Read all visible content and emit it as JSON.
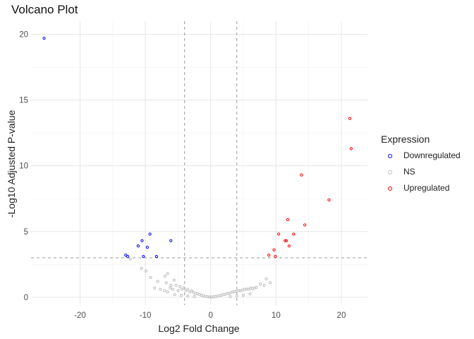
{
  "chart_data": {
    "type": "scatter",
    "title": "Volcano Plot",
    "xlabel": "Log2 Fold Change",
    "ylabel": "-Log10 Adjusted P-value",
    "xlim": [
      -27.5,
      24
    ],
    "ylim": [
      -0.6,
      21.0
    ],
    "x_ticks": [
      -20,
      -10,
      0,
      10,
      20
    ],
    "y_ticks": [
      0,
      5,
      10,
      15,
      20
    ],
    "grid": true,
    "legend_position": "right",
    "legend_title": "Expression",
    "thresholds": {
      "log2fc": [
        -4,
        4
      ],
      "neg_log10_padj": 3
    },
    "series": [
      {
        "name": "Downregulated",
        "color": "#0000ff",
        "points": [
          [
            -25.5,
            19.7
          ],
          [
            -13.0,
            3.2
          ],
          [
            -12.7,
            3.1
          ],
          [
            -11.1,
            3.9
          ],
          [
            -10.5,
            4.3
          ],
          [
            -10.3,
            3.1
          ],
          [
            -9.7,
            3.8
          ],
          [
            -9.3,
            4.8
          ],
          [
            -8.3,
            3.1
          ],
          [
            -6.1,
            4.3
          ]
        ]
      },
      {
        "name": "NS",
        "color": "#bebebe",
        "points": [
          [
            -12.3,
            2.9
          ],
          [
            -10.6,
            2.2
          ],
          [
            -9.9,
            2.0
          ],
          [
            -9.2,
            1.5
          ],
          [
            -8.1,
            1.2
          ],
          [
            -7.0,
            1.6
          ],
          [
            -6.8,
            1.1
          ],
          [
            -6.6,
            1.8
          ],
          [
            -6.1,
            0.9
          ],
          [
            -5.6,
            1.3
          ],
          [
            -8.6,
            0.7
          ],
          [
            -7.7,
            0.6
          ],
          [
            -7.1,
            0.5
          ],
          [
            -6.6,
            0.4
          ],
          [
            -6.2,
            0.7
          ],
          [
            -5.8,
            0.6
          ],
          [
            -5.3,
            0.9
          ],
          [
            -5.0,
            0.5
          ],
          [
            -4.7,
            0.8
          ],
          [
            -4.4,
            0.6
          ],
          [
            -4.1,
            0.7
          ],
          [
            -3.8,
            0.5
          ],
          [
            -3.5,
            0.6
          ],
          [
            -3.2,
            0.4
          ],
          [
            -2.9,
            0.5
          ],
          [
            -2.6,
            0.35
          ],
          [
            -2.3,
            0.3
          ],
          [
            -2.0,
            0.25
          ],
          [
            -1.7,
            0.2
          ],
          [
            -1.4,
            0.15
          ],
          [
            -1.1,
            0.1
          ],
          [
            -0.8,
            0.07
          ],
          [
            -0.5,
            0.04
          ],
          [
            -0.2,
            0.02
          ],
          [
            0.1,
            0.01
          ],
          [
            0.4,
            0.03
          ],
          [
            0.7,
            0.05
          ],
          [
            1.0,
            0.08
          ],
          [
            1.3,
            0.1
          ],
          [
            1.6,
            0.15
          ],
          [
            1.9,
            0.2
          ],
          [
            2.2,
            0.22
          ],
          [
            2.5,
            0.28
          ],
          [
            2.8,
            0.3
          ],
          [
            3.1,
            0.35
          ],
          [
            3.4,
            0.4
          ],
          [
            3.7,
            0.42
          ],
          [
            4.0,
            0.45
          ],
          [
            4.3,
            0.5
          ],
          [
            4.6,
            0.5
          ],
          [
            4.9,
            0.55
          ],
          [
            5.2,
            0.6
          ],
          [
            5.5,
            0.62
          ],
          [
            5.8,
            0.6
          ],
          [
            6.1,
            0.7
          ],
          [
            6.4,
            0.65
          ],
          [
            6.7,
            0.7
          ],
          [
            7.0,
            0.75
          ],
          [
            7.6,
            1.0
          ],
          [
            8.2,
            0.9
          ],
          [
            8.5,
            1.4
          ],
          [
            9.1,
            1.1
          ],
          [
            -5.5,
            0.2
          ],
          [
            -4.5,
            0.15
          ],
          [
            -3.5,
            0.1
          ],
          [
            -2.5,
            0.05
          ],
          [
            3.0,
            0.05
          ],
          [
            4.0,
            0.1
          ],
          [
            5.0,
            0.15
          ],
          [
            6.0,
            0.25
          ]
        ]
      },
      {
        "name": "Upregulated",
        "color": "#ff0000",
        "points": [
          [
            8.9,
            3.2
          ],
          [
            9.7,
            3.6
          ],
          [
            9.9,
            3.1
          ],
          [
            10.4,
            4.8
          ],
          [
            11.4,
            4.3
          ],
          [
            11.6,
            4.3
          ],
          [
            11.8,
            5.9
          ],
          [
            12.0,
            3.9
          ],
          [
            12.7,
            4.8
          ],
          [
            13.9,
            9.3
          ],
          [
            14.4,
            5.5
          ],
          [
            18.1,
            7.4
          ],
          [
            21.3,
            13.6
          ],
          [
            21.5,
            11.3
          ]
        ]
      }
    ]
  }
}
